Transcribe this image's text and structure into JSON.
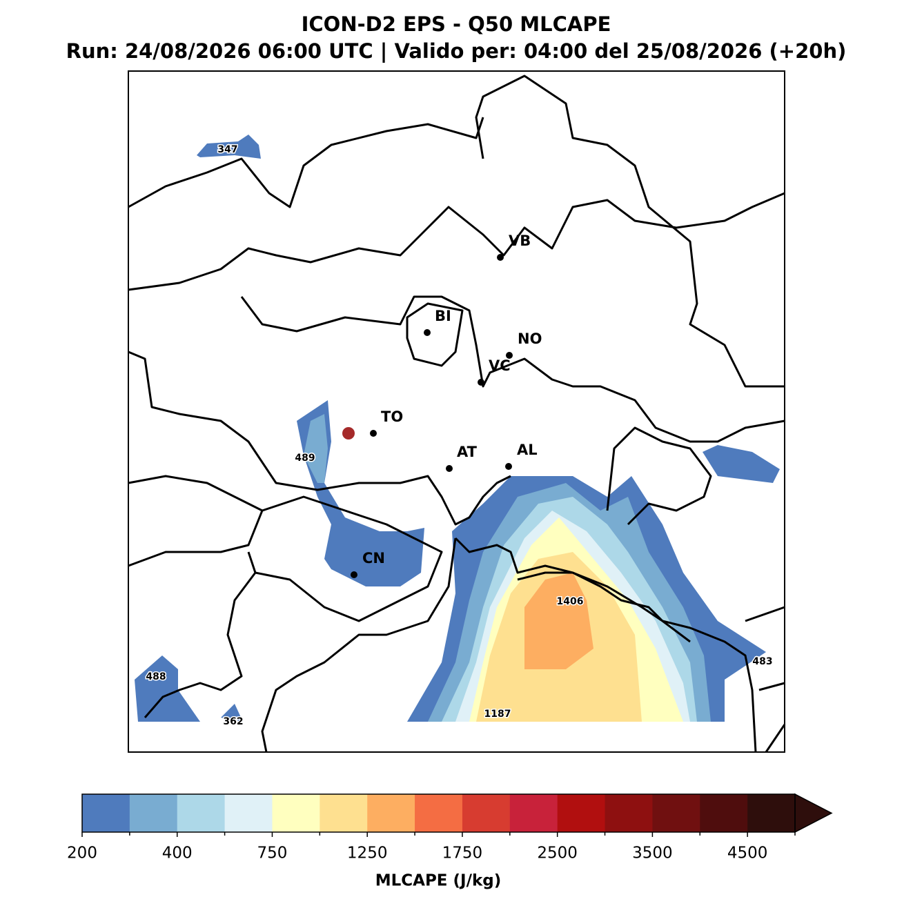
{
  "title": "ICON-D2 EPS - Q50 MLCAPE",
  "subtitle": "Run: 24/08/2026 06:00 UTC | Valido per: 04:00 del 25/08/2026 (+20h)",
  "cities": [
    "VB",
    "BI",
    "NO",
    "VC",
    "TO",
    "AT",
    "AL",
    "CN"
  ],
  "max_labels": [
    347,
    489,
    1406,
    488,
    362,
    1187,
    483
  ],
  "colorbar": {
    "label": "MLCAPE (J/kg)",
    "ticks": [
      200,
      400,
      750,
      1250,
      1750,
      2500,
      3500,
      4500
    ],
    "colors": [
      "#4f7bbd",
      "#79acd1",
      "#add8e8",
      "#e0f1f7",
      "#ffffbf",
      "#fee090",
      "#fdae61",
      "#f46d43",
      "#d73c30",
      "#c8223a",
      "#b10f0f",
      "#8e1010",
      "#701010",
      "#4f0d0d",
      "#2e0e0c"
    ],
    "extend_color": "#2e0e0c"
  }
}
